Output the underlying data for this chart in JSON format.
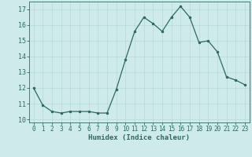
{
  "x": [
    0,
    1,
    2,
    3,
    4,
    5,
    6,
    7,
    8,
    9,
    10,
    11,
    12,
    13,
    14,
    15,
    16,
    17,
    18,
    19,
    20,
    21,
    22,
    23
  ],
  "y": [
    12.0,
    10.9,
    10.5,
    10.4,
    10.5,
    10.5,
    10.5,
    10.4,
    10.4,
    11.9,
    13.8,
    15.6,
    16.5,
    16.1,
    15.6,
    16.5,
    17.2,
    16.5,
    14.9,
    15.0,
    14.3,
    12.7,
    12.5,
    12.2
  ],
  "xlabel": "Humidex (Indice chaleur)",
  "xlim": [
    -0.5,
    23.5
  ],
  "ylim": [
    9.8,
    17.5
  ],
  "yticks": [
    10,
    11,
    12,
    13,
    14,
    15,
    16,
    17
  ],
  "xticks": [
    0,
    1,
    2,
    3,
    4,
    5,
    6,
    7,
    8,
    9,
    10,
    11,
    12,
    13,
    14,
    15,
    16,
    17,
    18,
    19,
    20,
    21,
    22,
    23
  ],
  "line_color": "#2d6b5e",
  "marker_color": "#2d6b5e",
  "bg_color": "#ceeaea",
  "grid_color": "#b8d8d8",
  "axes_color": "#2d6b5e",
  "tick_fontsize": 5.5,
  "xlabel_fontsize": 6.5
}
